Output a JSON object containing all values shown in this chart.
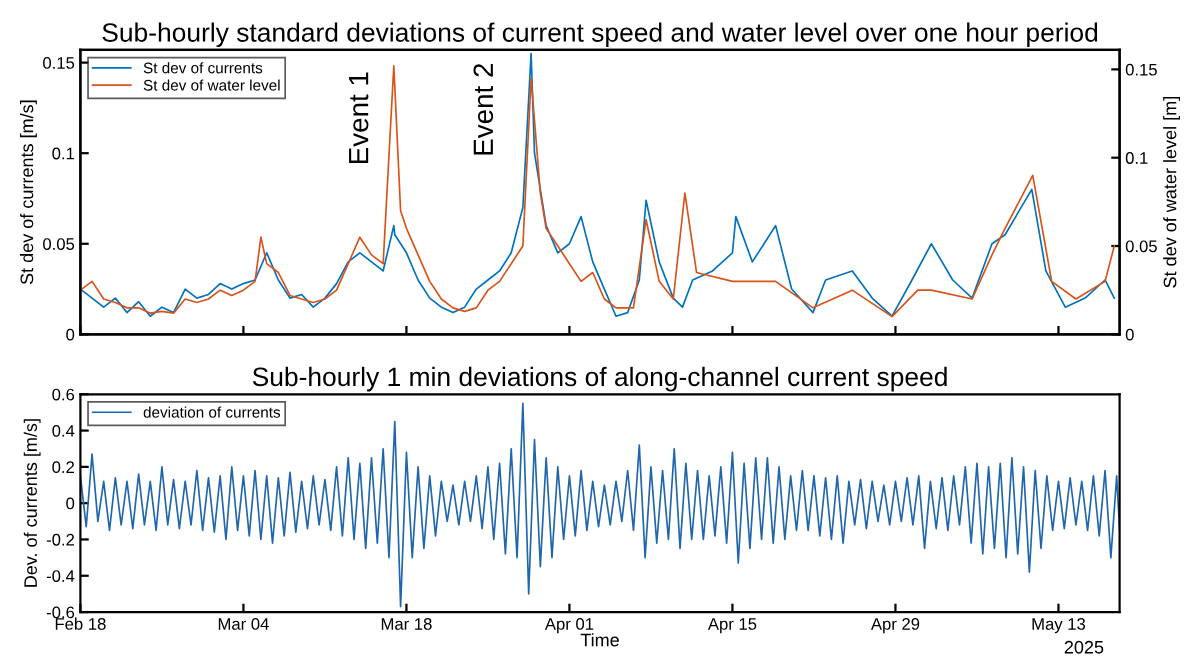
{
  "chart_data": [
    {
      "type": "line",
      "title": "Sub-hourly standard deviations of current speed and water level over one hour period",
      "ylabel": "St dev of currents [m/s]",
      "y2label": "St dev of water level [m]",
      "xlim": [
        "2025-02-18",
        "2025-05-18T06:00"
      ],
      "xticks": [
        {
          "value": "2025-02-18",
          "label": null
        },
        {
          "value": "2025-03-04",
          "label": null
        },
        {
          "value": "2025-03-18",
          "label": null
        },
        {
          "value": "2025-04-01",
          "label": null
        },
        {
          "value": "2025-04-15",
          "label": null
        },
        {
          "value": "2025-04-29",
          "label": null
        },
        {
          "value": "2025-05-13",
          "label": null
        }
      ],
      "ylim": [
        0,
        0.157
      ],
      "yticks": [
        0,
        0.05,
        0.1,
        0.15
      ],
      "y2lim": [
        0,
        0.161
      ],
      "y2ticks": [
        0,
        0.05,
        0.1,
        0.15
      ],
      "tick_labels": "y",
      "grid": false,
      "legend": "top left",
      "line_style": "solid",
      "marker": "none",
      "annotations": [
        "Event 1",
        "Event 2"
      ],
      "series": [
        {
          "name": "St dev of currents",
          "color": "#0072bd",
          "x": [
            "2025-02-18",
            "2025-02-19",
            "2025-02-20",
            "2025-02-21",
            "2025-02-22",
            "2025-02-23",
            "2025-02-24",
            "2025-02-25",
            "2025-02-26",
            "2025-02-27",
            "2025-02-28",
            "2025-03-01",
            "2025-03-02",
            "2025-03-03",
            "2025-03-04",
            "2025-03-05",
            "2025-03-06",
            "2025-03-07",
            "2025-03-08",
            "2025-03-09",
            "2025-03-10",
            "2025-03-11",
            "2025-03-12",
            "2025-03-13",
            "2025-03-14",
            "2025-03-15",
            "2025-03-16",
            "2025-03-16T22:00",
            "2025-03-17",
            "2025-03-18",
            "2025-03-19",
            "2025-03-20",
            "2025-03-21",
            "2025-03-22",
            "2025-03-23",
            "2025-03-24",
            "2025-03-25",
            "2025-03-26",
            "2025-03-27",
            "2025-03-28",
            "2025-03-28T17:00",
            "2025-03-29",
            "2025-03-30",
            "2025-03-31",
            "2025-04-01",
            "2025-04-02",
            "2025-04-03",
            "2025-04-04",
            "2025-04-05",
            "2025-04-06",
            "2025-04-07",
            "2025-04-07T14:00",
            "2025-04-08T17:00",
            "2025-04-09T22:00",
            "2025-04-10T17:00",
            "2025-04-11T14:00",
            "2025-04-13T07:00",
            "2025-04-15",
            "2025-04-15T07:00",
            "2025-04-16T17:00",
            "2025-04-18T17:00",
            "2025-04-20T02:00",
            "2025-04-21T22:00",
            "2025-04-23",
            "2025-04-25T07:00",
            "2025-04-27",
            "2025-04-28T17:00",
            "2025-04-30T10:00",
            "2025-05-02T02:00",
            "2025-05-03T22:00",
            "2025-05-05T14:00",
            "2025-05-07T07:00",
            "2025-05-08T10:00",
            "2025-05-10T17:00",
            "2025-05-11T22:00",
            "2025-05-13T14:00",
            "2025-05-15T07:00",
            "2025-05-17",
            "2025-05-17T19:00"
          ],
          "values": [
            0.025,
            0.02,
            0.015,
            0.02,
            0.012,
            0.018,
            0.01,
            0.015,
            0.012,
            0.025,
            0.02,
            0.022,
            0.028,
            0.025,
            0.028,
            0.03,
            0.045,
            0.03,
            0.02,
            0.022,
            0.015,
            0.02,
            0.028,
            0.04,
            0.045,
            0.04,
            0.035,
            0.06,
            0.055,
            0.045,
            0.03,
            0.02,
            0.015,
            0.012,
            0.015,
            0.025,
            0.03,
            0.035,
            0.045,
            0.07,
            0.155,
            0.1,
            0.06,
            0.045,
            0.05,
            0.065,
            0.04,
            0.025,
            0.01,
            0.012,
            0.03,
            0.074,
            0.04,
            0.02,
            0.015,
            0.03,
            0.035,
            0.045,
            0.065,
            0.04,
            0.06,
            0.025,
            0.012,
            0.03,
            0.035,
            0.02,
            0.01,
            0.03,
            0.05,
            0.03,
            0.02,
            0.05,
            0.055,
            0.08,
            0.035,
            0.015,
            0.02,
            0.03,
            0.02
          ]
        },
        {
          "name": "St dev of water level",
          "color": "#d95319",
          "axis": "y2",
          "x": [
            "2025-02-18",
            "2025-02-19",
            "2025-02-20",
            "2025-02-21",
            "2025-02-22",
            "2025-02-23",
            "2025-02-24",
            "2025-02-25",
            "2025-02-26",
            "2025-02-27",
            "2025-02-28",
            "2025-03-01",
            "2025-03-02",
            "2025-03-03",
            "2025-03-04",
            "2025-03-05",
            "2025-03-05T12:00",
            "2025-03-06",
            "2025-03-07",
            "2025-03-08",
            "2025-03-09",
            "2025-03-10",
            "2025-03-11",
            "2025-03-12",
            "2025-03-13",
            "2025-03-14",
            "2025-03-15",
            "2025-03-16",
            "2025-03-16T22:00",
            "2025-03-17T12:00",
            "2025-03-18",
            "2025-03-19",
            "2025-03-20",
            "2025-03-21",
            "2025-03-22",
            "2025-03-23",
            "2025-03-24",
            "2025-03-25",
            "2025-03-26",
            "2025-03-27",
            "2025-03-28",
            "2025-03-28T17:00",
            "2025-03-29T12:00",
            "2025-03-30",
            "2025-03-31",
            "2025-04-01",
            "2025-04-02",
            "2025-04-03",
            "2025-04-04",
            "2025-04-05",
            "2025-04-06T12:00",
            "2025-04-07T14:00",
            "2025-04-08T17:00",
            "2025-04-09T22:00",
            "2025-04-10T22:00",
            "2025-04-11T22:00",
            "2025-04-15",
            "2025-04-18T17:00",
            "2025-04-21T22:00",
            "2025-04-25T07:00",
            "2025-04-28T17:00",
            "2025-04-30T22:00",
            "2025-05-02T02:00",
            "2025-05-05T14:00",
            "2025-05-07T07:00",
            "2025-05-08T10:00",
            "2025-05-10T19:00",
            "2025-05-12T10:00",
            "2025-05-14T12:00",
            "2025-05-17",
            "2025-05-17T19:00"
          ],
          "values": [
            0.025,
            0.03,
            0.02,
            0.018,
            0.015,
            0.015,
            0.012,
            0.013,
            0.012,
            0.02,
            0.018,
            0.02,
            0.025,
            0.022,
            0.025,
            0.03,
            0.055,
            0.04,
            0.035,
            0.022,
            0.02,
            0.018,
            0.02,
            0.025,
            0.04,
            0.055,
            0.045,
            0.04,
            0.152,
            0.07,
            0.06,
            0.045,
            0.03,
            0.02,
            0.015,
            0.013,
            0.015,
            0.025,
            0.03,
            0.04,
            0.05,
            0.145,
            0.08,
            0.06,
            0.05,
            0.04,
            0.03,
            0.035,
            0.02,
            0.015,
            0.015,
            0.065,
            0.03,
            0.02,
            0.08,
            0.035,
            0.03,
            0.03,
            0.015,
            0.025,
            0.01,
            0.025,
            0.025,
            0.02,
            0.045,
            0.06,
            0.09,
            0.03,
            0.02,
            0.03,
            0.05
          ]
        }
      ]
    },
    {
      "type": "line",
      "title": "Sub-hourly 1 min deviations of along-channel current speed",
      "xlabel": "Time",
      "ylabel": "Dev. of currents [m/s]",
      "xlim": [
        "2025-02-18",
        "2025-05-18T06:00"
      ],
      "xticks": [
        {
          "value": "2025-02-18",
          "label": "Feb 18"
        },
        {
          "value": "2025-03-04",
          "label": "Mar 04"
        },
        {
          "value": "2025-03-18",
          "label": "Mar 18"
        },
        {
          "value": "2025-04-01",
          "label": "Apr 01"
        },
        {
          "value": "2025-04-15",
          "label": "Apr 15"
        },
        {
          "value": "2025-04-29",
          "label": "Apr 29"
        },
        {
          "value": "2025-05-13",
          "label": "May 13"
        }
      ],
      "ylim": [
        -0.6,
        0.6
      ],
      "yticks": [
        -0.6,
        -0.4,
        -0.2,
        0,
        0.2,
        0.4,
        0.6
      ],
      "grid": false,
      "legend": "top left",
      "line_style": "solid",
      "marker": "none",
      "annotations": [
        "2025"
      ],
      "series": [
        {
          "name": "deviation of currents",
          "color": "#1f66ad",
          "x": [
            "2025-02-18T00:00",
            "2025-02-18T12:00",
            "2025-02-19T00:00",
            "2025-02-19T12:00",
            "2025-02-20T00:00",
            "2025-02-20T12:00",
            "2025-02-21T00:00",
            "2025-02-21T12:00",
            "2025-02-22T00:00",
            "2025-02-22T12:00",
            "2025-02-23T00:00",
            "2025-02-23T12:00",
            "2025-02-24T00:00",
            "2025-02-24T12:00",
            "2025-02-25T00:00",
            "2025-02-25T12:00",
            "2025-02-26T00:00",
            "2025-02-26T12:00",
            "2025-02-27T00:00",
            "2025-02-27T12:00",
            "2025-02-28T00:00",
            "2025-02-28T12:00",
            "2025-03-01T00:00",
            "2025-03-01T12:00",
            "2025-03-02T00:00",
            "2025-03-02T12:00",
            "2025-03-03T00:00",
            "2025-03-03T12:00",
            "2025-03-04T00:00",
            "2025-03-04T12:00",
            "2025-03-05T00:00",
            "2025-03-05T12:00",
            "2025-03-06T00:00",
            "2025-03-06T12:00",
            "2025-03-07T00:00",
            "2025-03-07T12:00",
            "2025-03-08T00:00",
            "2025-03-08T12:00",
            "2025-03-09T00:00",
            "2025-03-09T12:00",
            "2025-03-10T00:00",
            "2025-03-10T12:00",
            "2025-03-11T00:00",
            "2025-03-11T12:00",
            "2025-03-12T00:00",
            "2025-03-12T12:00",
            "2025-03-13T00:00",
            "2025-03-13T12:00",
            "2025-03-14T00:00",
            "2025-03-14T12:00",
            "2025-03-15T00:00",
            "2025-03-15T12:00",
            "2025-03-16T00:00",
            "2025-03-16T12:00",
            "2025-03-17T00:00",
            "2025-03-17T12:00",
            "2025-03-18T00:00",
            "2025-03-18T12:00",
            "2025-03-19T00:00",
            "2025-03-19T12:00",
            "2025-03-20T00:00",
            "2025-03-20T12:00",
            "2025-03-21T00:00",
            "2025-03-21T12:00",
            "2025-03-22T00:00",
            "2025-03-22T12:00",
            "2025-03-23T00:00",
            "2025-03-23T12:00",
            "2025-03-24T00:00",
            "2025-03-24T12:00",
            "2025-03-25T00:00",
            "2025-03-25T12:00",
            "2025-03-26T00:00",
            "2025-03-26T12:00",
            "2025-03-27T00:00",
            "2025-03-27T12:00",
            "2025-03-28T00:00",
            "2025-03-28T12:00",
            "2025-03-29T00:00",
            "2025-03-29T12:00",
            "2025-03-30T00:00",
            "2025-03-30T12:00",
            "2025-03-31T00:00",
            "2025-03-31T12:00",
            "2025-04-01T00:00",
            "2025-04-01T12:00",
            "2025-04-02T00:00",
            "2025-04-02T12:00",
            "2025-04-03T00:00",
            "2025-04-03T12:00",
            "2025-04-04T00:00",
            "2025-04-04T12:00",
            "2025-04-05T00:00",
            "2025-04-05T12:00",
            "2025-04-06T00:00",
            "2025-04-06T12:00",
            "2025-04-07T00:00",
            "2025-04-07T12:00",
            "2025-04-08T00:00",
            "2025-04-08T12:00",
            "2025-04-09T00:00",
            "2025-04-09T12:00",
            "2025-04-10T00:00",
            "2025-04-10T12:00",
            "2025-04-11T00:00",
            "2025-04-11T12:00",
            "2025-04-12T00:00",
            "2025-04-12T12:00",
            "2025-04-13T00:00",
            "2025-04-13T12:00",
            "2025-04-14T00:00",
            "2025-04-14T12:00",
            "2025-04-15T00:00",
            "2025-04-15T12:00",
            "2025-04-16T00:00",
            "2025-04-16T12:00",
            "2025-04-17T00:00",
            "2025-04-17T12:00",
            "2025-04-18T00:00",
            "2025-04-18T12:00",
            "2025-04-19T00:00",
            "2025-04-19T12:00",
            "2025-04-20T00:00",
            "2025-04-20T12:00",
            "2025-04-21T00:00",
            "2025-04-21T12:00",
            "2025-04-22T00:00",
            "2025-04-22T12:00",
            "2025-04-23T00:00",
            "2025-04-23T12:00",
            "2025-04-24T00:00",
            "2025-04-24T12:00",
            "2025-04-25T00:00",
            "2025-04-25T12:00",
            "2025-04-26T00:00",
            "2025-04-26T12:00",
            "2025-04-27T00:00",
            "2025-04-27T12:00",
            "2025-04-28T00:00",
            "2025-04-28T12:00",
            "2025-04-29T00:00",
            "2025-04-29T12:00",
            "2025-04-30T00:00",
            "2025-04-30T12:00",
            "2025-05-01T00:00",
            "2025-05-01T12:00",
            "2025-05-02T00:00",
            "2025-05-02T12:00",
            "2025-05-03T00:00",
            "2025-05-03T12:00",
            "2025-05-04T00:00",
            "2025-05-04T12:00",
            "2025-05-05T00:00",
            "2025-05-05T12:00",
            "2025-05-06T00:00",
            "2025-05-06T12:00",
            "2025-05-07T00:00",
            "2025-05-07T12:00",
            "2025-05-08T00:00",
            "2025-05-08T12:00",
            "2025-05-09T00:00",
            "2025-05-09T12:00",
            "2025-05-10T00:00",
            "2025-05-10T12:00",
            "2025-05-11T00:00",
            "2025-05-11T12:00",
            "2025-05-12T00:00",
            "2025-05-12T12:00",
            "2025-05-13T00:00",
            "2025-05-13T12:00",
            "2025-05-14T00:00",
            "2025-05-14T12:00",
            "2025-05-15T00:00",
            "2025-05-15T12:00",
            "2025-05-16T00:00",
            "2025-05-16T12:00",
            "2025-05-17T00:00",
            "2025-05-17T12:00",
            "2025-05-18T00:00",
            "2025-05-18T06:00"
          ],
          "values": [
            0.15,
            -0.13,
            0.27,
            -0.1,
            0.12,
            -0.15,
            0.14,
            -0.12,
            0.12,
            -0.14,
            0.16,
            -0.12,
            0.12,
            -0.15,
            0.2,
            -0.12,
            0.13,
            -0.14,
            0.12,
            -0.12,
            0.18,
            -0.15,
            0.14,
            -0.16,
            0.15,
            -0.2,
            0.2,
            -0.15,
            0.15,
            -0.18,
            0.18,
            -0.2,
            0.15,
            -0.22,
            0.14,
            -0.18,
            0.17,
            -0.16,
            0.12,
            -0.14,
            0.15,
            -0.12,
            0.13,
            -0.15,
            0.2,
            -0.18,
            0.25,
            -0.2,
            0.22,
            -0.25,
            0.25,
            -0.22,
            0.3,
            -0.3,
            0.45,
            -0.57,
            0.28,
            -0.3,
            0.2,
            -0.25,
            0.15,
            -0.18,
            0.12,
            -0.1,
            0.1,
            -0.12,
            0.12,
            -0.1,
            0.15,
            -0.14,
            0.2,
            -0.2,
            0.22,
            -0.28,
            0.3,
            -0.3,
            0.55,
            -0.5,
            0.35,
            -0.35,
            0.25,
            -0.3,
            0.2,
            -0.2,
            0.15,
            -0.18,
            0.18,
            -0.15,
            0.12,
            -0.13,
            0.1,
            -0.12,
            0.12,
            -0.1,
            0.18,
            -0.15,
            0.32,
            -0.3,
            0.2,
            -0.22,
            0.18,
            -0.2,
            0.3,
            -0.25,
            0.22,
            -0.2,
            0.18,
            -0.2,
            0.15,
            -0.18,
            0.2,
            -0.22,
            0.28,
            -0.33,
            0.22,
            -0.25,
            0.25,
            -0.2,
            0.25,
            -0.22,
            0.2,
            -0.2,
            0.15,
            -0.15,
            0.18,
            -0.15,
            0.15,
            -0.18,
            0.14,
            -0.2,
            0.15,
            -0.22,
            0.12,
            -0.12,
            0.13,
            -0.14,
            0.12,
            -0.1,
            0.1,
            -0.12,
            0.12,
            -0.1,
            0.14,
            -0.12,
            0.15,
            -0.25,
            0.12,
            -0.14,
            0.14,
            -0.15,
            0.15,
            -0.12,
            0.2,
            -0.22,
            0.22,
            -0.28,
            0.2,
            -0.25,
            0.22,
            -0.3,
            0.25,
            -0.28,
            0.2,
            -0.38,
            0.18,
            -0.25,
            0.15,
            -0.15,
            0.12,
            -0.14,
            0.14,
            -0.12,
            0.12,
            -0.15,
            0.15,
            -0.18,
            0.18,
            -0.3,
            0.15,
            -0.15
          ]
        }
      ]
    }
  ]
}
